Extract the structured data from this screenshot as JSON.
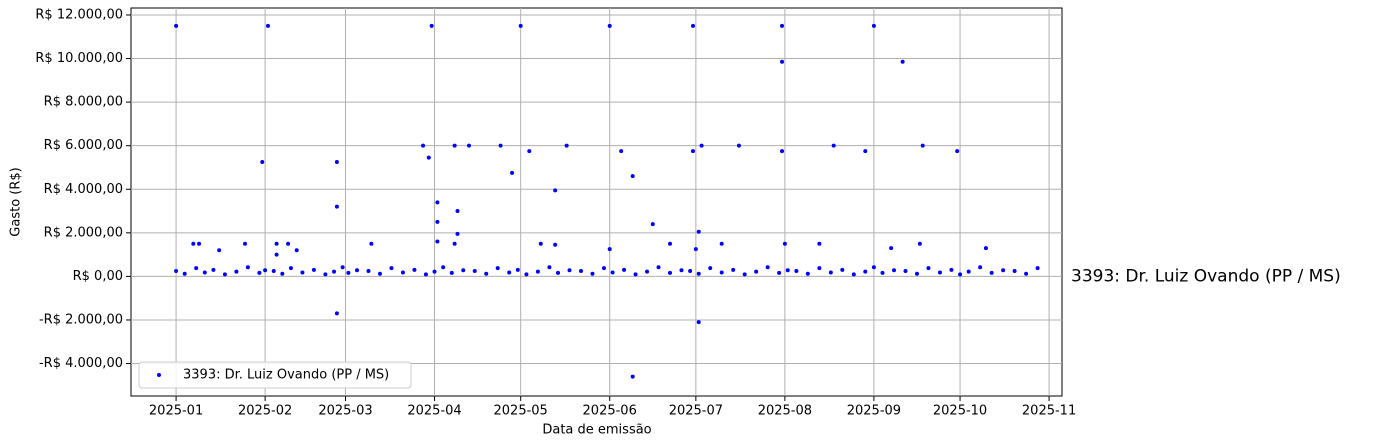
{
  "chart_data": {
    "type": "scatter",
    "xlabel": "Data de emissão",
    "ylabel": "Gasto (R$)",
    "annotation": "3393: Dr. Luiz Ovando (PP / MS)",
    "annotation_color": "#0000ff",
    "legend": "lower left",
    "grid": true,
    "xlim": [
      -15.7,
      308.5
    ],
    "xticks": [
      {
        "value": 0,
        "label": "2025-01"
      },
      {
        "value": 31,
        "label": "2025-02"
      },
      {
        "value": 59,
        "label": "2025-03"
      },
      {
        "value": 90,
        "label": "2025-04"
      },
      {
        "value": 120,
        "label": "2025-05"
      },
      {
        "value": 151,
        "label": "2025-06"
      },
      {
        "value": 181,
        "label": "2025-07"
      },
      {
        "value": 212,
        "label": "2025-08"
      },
      {
        "value": 243,
        "label": "2025-09"
      },
      {
        "value": 273,
        "label": "2025-10"
      },
      {
        "value": 304,
        "label": "2025-11"
      }
    ],
    "ylim": [
      -5490,
      12320
    ],
    "yticks": [
      {
        "value": -4000,
        "label": "-R$ 4.000,00"
      },
      {
        "value": -2000,
        "label": "-R$ 2.000,00"
      },
      {
        "value": 0,
        "label": "R$ 0,00"
      },
      {
        "value": 2000,
        "label": "R$ 2.000,00"
      },
      {
        "value": 4000,
        "label": "R$ 4.000,00"
      },
      {
        "value": 6000,
        "label": "R$ 6.000,00"
      },
      {
        "value": 8000,
        "label": "R$ 8.000,00"
      },
      {
        "value": 10000,
        "label": "R$ 10.000,00"
      },
      {
        "value": 12000,
        "label": "R$ 12.000,00"
      }
    ],
    "series": [
      {
        "name": "3393: Dr. Luiz Ovando (PP / MS)",
        "color": "#0000ff",
        "x": [
          0,
          32,
          89,
          120,
          151,
          180,
          211,
          243,
          211,
          253,
          86,
          97,
          102,
          113,
          136,
          183,
          196,
          229,
          260,
          123,
          155,
          180,
          211,
          240,
          272,
          30,
          56,
          88,
          117,
          159,
          132,
          91,
          56,
          98,
          91,
          166,
          182,
          98,
          91,
          6,
          8,
          24,
          35,
          39,
          68,
          97,
          127,
          132,
          172,
          190,
          212,
          224,
          259,
          151,
          181,
          249,
          282,
          15,
          42,
          35,
          56,
          182,
          159,
          0,
          3,
          7,
          10,
          13,
          17,
          21,
          25,
          29,
          31,
          34,
          37,
          40,
          44,
          48,
          52,
          55,
          58,
          60,
          63,
          67,
          71,
          75,
          79,
          83,
          87,
          90,
          93,
          96,
          100,
          104,
          108,
          112,
          116,
          119,
          122,
          126,
          130,
          133,
          137,
          141,
          145,
          149,
          152,
          156,
          160,
          164,
          168,
          172,
          176,
          179,
          182,
          186,
          190,
          194,
          198,
          202,
          206,
          210,
          213,
          216,
          220,
          224,
          228,
          232,
          236,
          240,
          243,
          246,
          250,
          254,
          258,
          262,
          266,
          270,
          273,
          276,
          280,
          284,
          288,
          292,
          296,
          300
        ],
        "values": [
          11500,
          11500,
          11500,
          11500,
          11500,
          11500,
          11500,
          11500,
          9850,
          9850,
          6000,
          6000,
          6000,
          6000,
          6000,
          6000,
          6000,
          6000,
          6000,
          5750,
          5750,
          5750,
          5750,
          5750,
          5750,
          5250,
          5250,
          5450,
          4750,
          4600,
          3950,
          3400,
          3200,
          3000,
          2500,
          2400,
          2050,
          1950,
          1600,
          1500,
          1500,
          1500,
          1500,
          1500,
          1500,
          1500,
          1500,
          1450,
          1500,
          1500,
          1500,
          1500,
          1500,
          1250,
          1250,
          1300,
          1300,
          1200,
          1200,
          1000,
          -1700,
          -2100,
          -4600,
          250,
          120,
          380,
          180,
          300,
          90,
          220,
          420,
          160,
          280,
          250,
          120,
          380,
          180,
          300,
          90,
          220,
          420,
          160,
          280,
          250,
          120,
          380,
          180,
          300,
          90,
          220,
          420,
          160,
          280,
          250,
          120,
          380,
          180,
          300,
          90,
          220,
          420,
          160,
          280,
          250,
          120,
          380,
          180,
          300,
          90,
          220,
          420,
          160,
          280,
          250,
          120,
          380,
          180,
          300,
          90,
          220,
          420,
          160,
          280,
          250,
          120,
          380,
          180,
          300,
          90,
          220,
          420,
          160,
          280,
          250,
          120,
          380,
          180,
          300,
          90,
          220,
          420,
          160,
          280,
          250,
          120,
          380
        ]
      }
    ]
  }
}
